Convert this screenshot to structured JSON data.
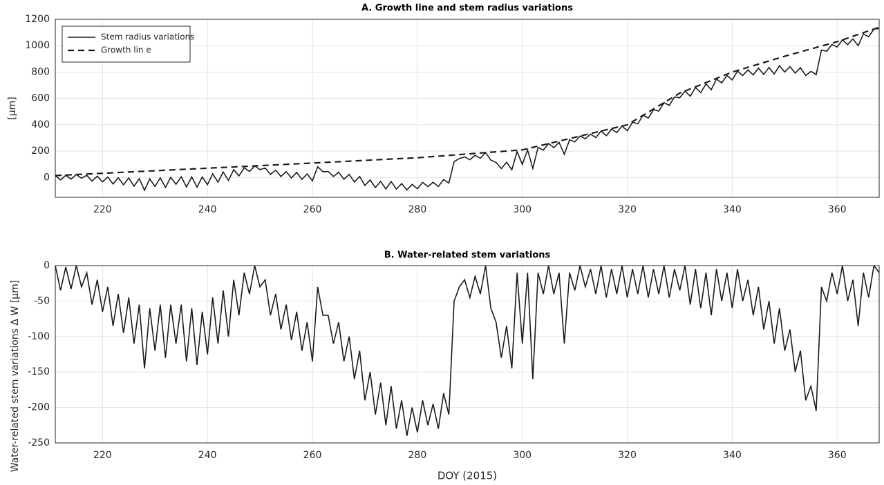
{
  "chart_data": [
    {
      "type": "line",
      "title": "A. Growth line and stem radius variations",
      "ylabel": "[µm]",
      "xlim": [
        211,
        368
      ],
      "xticks": [
        220,
        240,
        260,
        280,
        300,
        320,
        340,
        360
      ],
      "ylim": [
        -150,
        1200
      ],
      "yticks": [
        0,
        200,
        400,
        600,
        800,
        1000,
        1200
      ],
      "grid": true,
      "legend": "upper-left",
      "x": [
        211,
        212,
        213,
        214,
        215,
        216,
        217,
        218,
        219,
        220,
        221,
        222,
        223,
        224,
        225,
        226,
        227,
        228,
        229,
        230,
        231,
        232,
        233,
        234,
        235,
        236,
        237,
        238,
        239,
        240,
        241,
        242,
        243,
        244,
        245,
        246,
        247,
        248,
        249,
        250,
        251,
        252,
        253,
        254,
        255,
        256,
        257,
        258,
        259,
        260,
        261,
        262,
        263,
        264,
        265,
        266,
        267,
        268,
        269,
        270,
        271,
        272,
        273,
        274,
        275,
        276,
        277,
        278,
        279,
        280,
        281,
        282,
        283,
        284,
        285,
        286,
        287,
        288,
        289,
        290,
        291,
        292,
        293,
        294,
        295,
        296,
        297,
        298,
        299,
        300,
        301,
        302,
        303,
        304,
        305,
        306,
        307,
        308,
        309,
        310,
        311,
        312,
        313,
        314,
        315,
        316,
        317,
        318,
        319,
        320,
        321,
        322,
        323,
        324,
        325,
        326,
        327,
        328,
        329,
        330,
        331,
        332,
        333,
        334,
        335,
        336,
        337,
        338,
        339,
        340,
        341,
        342,
        343,
        344,
        345,
        346,
        347,
        348,
        349,
        350,
        351,
        352,
        353,
        354,
        355,
        356,
        357,
        358,
        359,
        360,
        361,
        362,
        363,
        364,
        365,
        366,
        367,
        368
      ],
      "series": [
        {
          "name": "Stem radius variations",
          "color": "#1a1a1a",
          "dash": false,
          "values": [
            15,
            -18,
            17,
            -12,
            23,
            -5,
            17,
            -27,
            10,
            -33,
            4,
            -49,
            -2,
            -55,
            -3,
            -66,
            -9,
            -97,
            -10,
            -68,
            -2,
            -75,
            2,
            -51,
            6,
            -72,
            5,
            -73,
            4,
            -54,
            28,
            -35,
            42,
            -22,
            60,
            12,
            74,
            46,
            88,
            60,
            72,
            24,
            56,
            8,
            45,
            -3,
            39,
            -14,
            28,
            -25,
            82,
            44,
            46,
            8,
            40,
            -13,
            24,
            -34,
            8,
            -60,
            -18,
            -76,
            -29,
            -87,
            -30,
            -88,
            -46,
            -94,
            -52,
            -85,
            -37,
            -69,
            -36,
            -68,
            -15,
            -42,
            121,
            144,
            157,
            135,
            168,
            146,
            189,
            132,
            115,
            68,
            116,
            59,
            197,
            100,
            210,
            69,
            229,
            208,
            258,
            227,
            267,
            176,
            286,
            270,
            315,
            294,
            329,
            303,
            353,
            317,
            367,
            341,
            391,
            355,
            419,
            408,
            472,
            451,
            515,
            504,
            568,
            547,
            611,
            605,
            656,
            617,
            683,
            644,
            710,
            666,
            747,
            718,
            774,
            740,
            807,
            774,
            816,
            778,
            830,
            782,
            834,
            786,
            848,
            800,
            841,
            792,
            833,
            774,
            805,
            781,
            967,
            958,
            1009,
            990,
            1044,
            1008,
            1051,
            1000,
            1089,
            1068,
            1126,
            1130
          ]
        },
        {
          "name": "Growth lin e",
          "color": "#1a1a1a",
          "dash": true,
          "x": [
            211,
            250,
            280,
            300,
            320,
            330,
            340,
            350,
            360,
            368
          ],
          "values": [
            15,
            90,
            150,
            210,
            400,
            640,
            800,
            920,
            1030,
            1140
          ]
        }
      ]
    },
    {
      "type": "line",
      "title": "B. Water-related stem variations",
      "ylabel": "Water-related stem variations   Δ W [µm]",
      "xlabel": "DOY (2015)",
      "xlim": [
        211,
        368
      ],
      "xticks": [
        220,
        240,
        260,
        280,
        300,
        320,
        340,
        360
      ],
      "ylim": [
        -250,
        0
      ],
      "yticks": [
        -250,
        -200,
        -150,
        -100,
        -50,
        0
      ],
      "grid": true,
      "x": [
        211,
        212,
        213,
        214,
        215,
        216,
        217,
        218,
        219,
        220,
        221,
        222,
        223,
        224,
        225,
        226,
        227,
        228,
        229,
        230,
        231,
        232,
        233,
        234,
        235,
        236,
        237,
        238,
        239,
        240,
        241,
        242,
        243,
        244,
        245,
        246,
        247,
        248,
        249,
        250,
        251,
        252,
        253,
        254,
        255,
        256,
        257,
        258,
        259,
        260,
        261,
        262,
        263,
        264,
        265,
        266,
        267,
        268,
        269,
        270,
        271,
        272,
        273,
        274,
        275,
        276,
        277,
        278,
        279,
        280,
        281,
        282,
        283,
        284,
        285,
        286,
        287,
        288,
        289,
        290,
        291,
        292,
        293,
        294,
        295,
        296,
        297,
        298,
        299,
        300,
        301,
        302,
        303,
        304,
        305,
        306,
        307,
        308,
        309,
        310,
        311,
        312,
        313,
        314,
        315,
        316,
        317,
        318,
        319,
        320,
        321,
        322,
        323,
        324,
        325,
        326,
        327,
        328,
        329,
        330,
        331,
        332,
        333,
        334,
        335,
        336,
        337,
        338,
        339,
        340,
        341,
        342,
        343,
        344,
        345,
        346,
        347,
        348,
        349,
        350,
        351,
        352,
        353,
        354,
        355,
        356,
        357,
        358,
        359,
        360,
        361,
        362,
        363,
        364,
        365,
        366,
        367,
        368
      ],
      "series": [
        {
          "color": "#1a1a1a",
          "values": [
            0,
            -35,
            -2,
            -33,
            0,
            -30,
            -10,
            -55,
            -20,
            -65,
            -30,
            -85,
            -40,
            -95,
            -45,
            -110,
            -55,
            -145,
            -60,
            -120,
            -55,
            -130,
            -55,
            -110,
            -55,
            -135,
            -60,
            -140,
            -65,
            -125,
            -45,
            -110,
            -35,
            -100,
            -20,
            -70,
            -10,
            -40,
            0,
            -30,
            -20,
            -70,
            -40,
            -90,
            -55,
            -105,
            -65,
            -120,
            -80,
            -135,
            -30,
            -70,
            -70,
            -110,
            -80,
            -135,
            -100,
            -160,
            -120,
            -190,
            -150,
            -210,
            -165,
            -225,
            -170,
            -230,
            -190,
            -240,
            -200,
            -235,
            -190,
            -225,
            -195,
            -230,
            -180,
            -210,
            -50,
            -30,
            -20,
            -45,
            -15,
            -40,
            0,
            -60,
            -80,
            -130,
            -85,
            -145,
            -10,
            -110,
            -10,
            -160,
            -10,
            -40,
            0,
            -40,
            -10,
            -110,
            -10,
            -35,
            0,
            -30,
            -5,
            -40,
            0,
            -45,
            -5,
            -40,
            0,
            -45,
            -5,
            -40,
            0,
            -45,
            -5,
            -40,
            0,
            -45,
            -5,
            -35,
            0,
            -55,
            -5,
            -60,
            -10,
            -70,
            -5,
            -50,
            -10,
            -60,
            -5,
            -50,
            -20,
            -70,
            -30,
            -90,
            -50,
            -110,
            -60,
            -120,
            -90,
            -150,
            -120,
            -190,
            -170,
            -205,
            -30,
            -50,
            -10,
            -40,
            0,
            -50,
            -20,
            -85,
            -10,
            -45,
            0,
            -10
          ]
        }
      ]
    }
  ]
}
